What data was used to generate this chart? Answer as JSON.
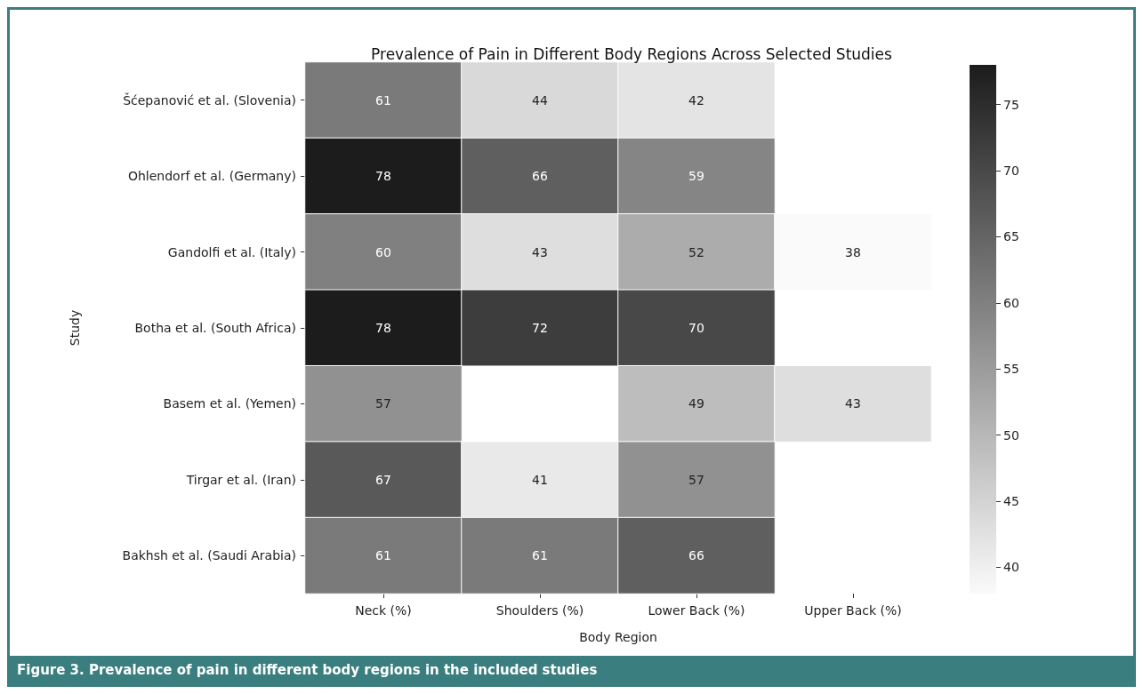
{
  "chart_data": {
    "type": "heatmap",
    "title": "Prevalence of Pain in Different Body Regions Across Selected Studies",
    "xlabel": "Body Region",
    "ylabel": "Study",
    "categories": [
      "Neck (%)",
      "Shoulders (%)",
      "Lower Back (%)",
      "Upper Back (%)"
    ],
    "y_categories": [
      "Šćepanović et al. (Slovenia)",
      "Ohlendorf et al. (Germany)",
      "Gandolfi et al. (Italy)",
      "Botha et al. (South Africa)",
      "Basem et al. (Yemen)",
      "Tirgar et al. (Iran)",
      "Bakhsh et al. (Saudi Arabia)"
    ],
    "cells": [
      [
        61,
        44,
        42,
        null
      ],
      [
        78,
        66,
        59,
        null
      ],
      [
        60,
        43,
        52,
        38
      ],
      [
        78,
        72,
        70,
        null
      ],
      [
        57,
        null,
        49,
        43
      ],
      [
        67,
        41,
        57,
        null
      ],
      [
        61,
        61,
        66,
        null
      ]
    ],
    "clim": [
      38,
      78
    ],
    "cticks": [
      40,
      45,
      50,
      55,
      60,
      65,
      70,
      75
    ],
    "data_labels": true,
    "annotations": [
      "Figure 3. Prevalence of pain in different body regions in the included studies"
    ]
  }
}
